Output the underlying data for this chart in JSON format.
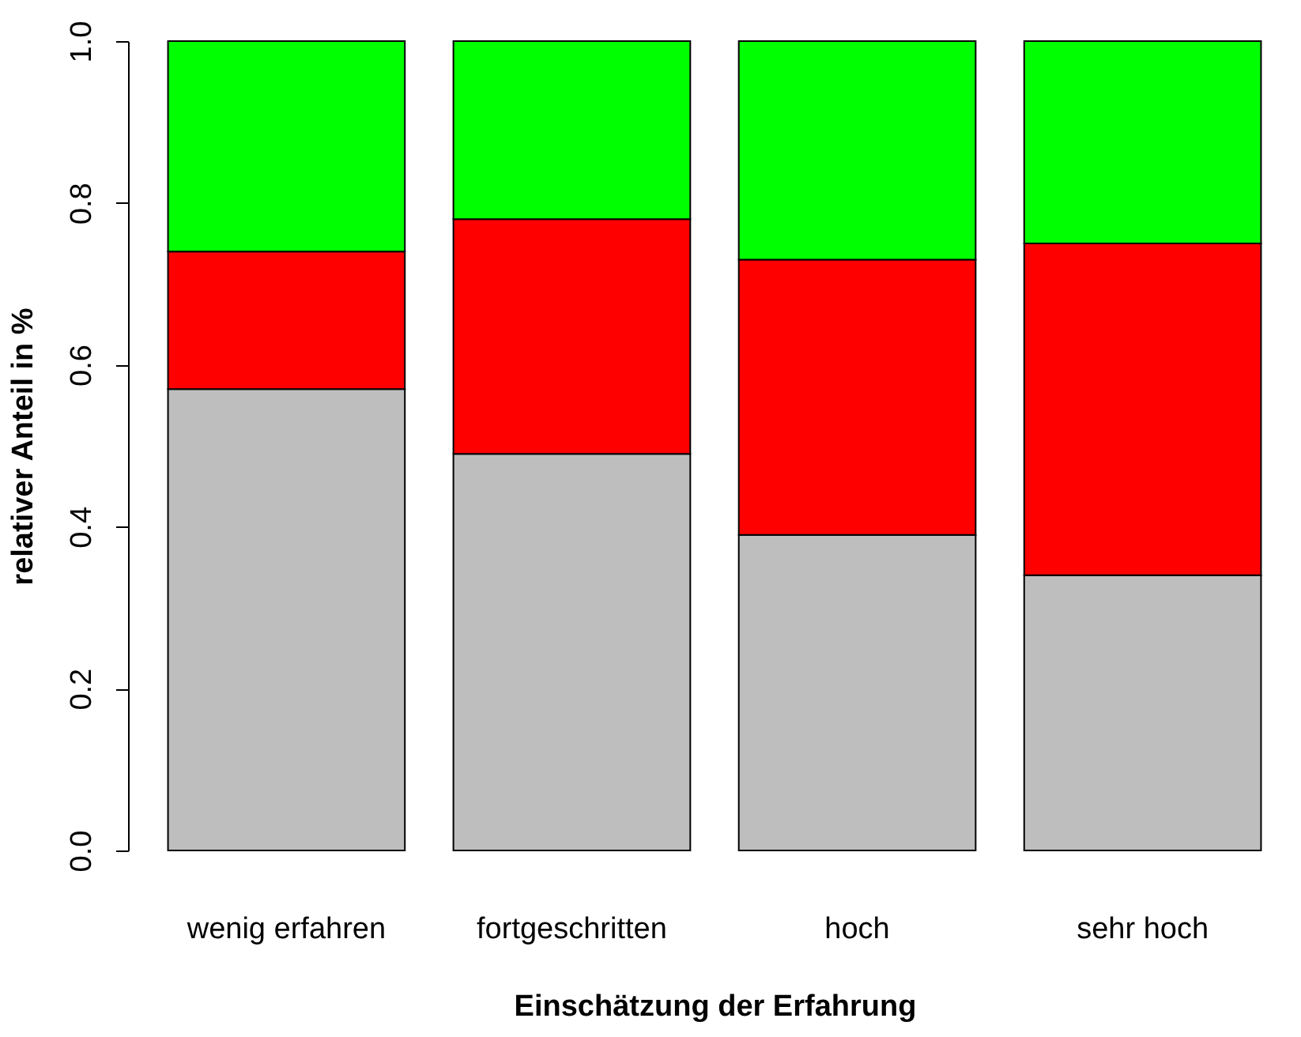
{
  "chart_data": {
    "type": "bar",
    "stacked": true,
    "xlabel": "Einschätzung der Erfahrung",
    "ylabel": "relativer Anteil in %",
    "categories": [
      "wenig erfahren",
      "fortgeschritten",
      "hoch",
      "sehr hoch"
    ],
    "series": [
      {
        "color": "#bebebe",
        "values": [
          0.57,
          0.49,
          0.39,
          0.34
        ]
      },
      {
        "color": "#ff0000",
        "values": [
          0.17,
          0.29,
          0.34,
          0.41
        ]
      },
      {
        "color": "#00ff00",
        "values": [
          0.26,
          0.22,
          0.27,
          0.25
        ]
      }
    ],
    "ylim": [
      0,
      1
    ],
    "yticks": [
      {
        "value": 0,
        "label": "0.0"
      },
      {
        "value": 0.2,
        "label": "0.2"
      },
      {
        "value": 0.4,
        "label": "0.4"
      },
      {
        "value": 0.6,
        "label": "0.6"
      },
      {
        "value": 0.8,
        "label": "0.8"
      },
      {
        "value": 1,
        "label": "1.0"
      }
    ],
    "grid": false,
    "legend": false
  }
}
